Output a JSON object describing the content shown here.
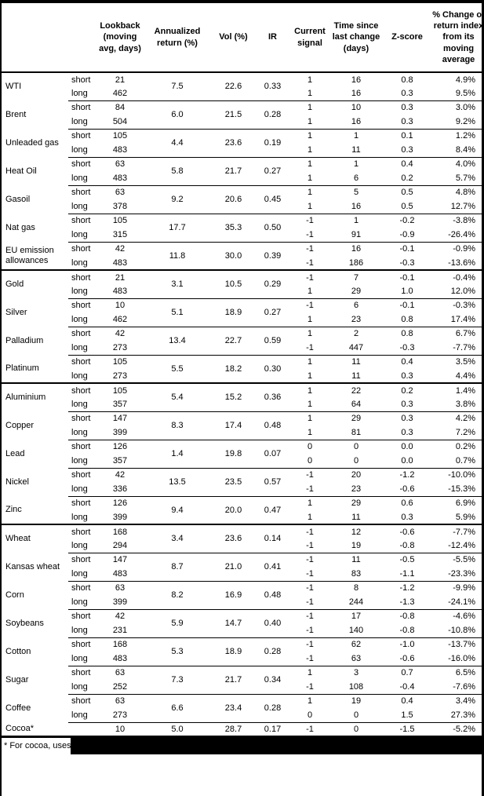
{
  "header": {
    "keys": [
      "commodity",
      "signal-type",
      "lookback",
      "annualized-return",
      "vol",
      "ir",
      "current-signal",
      "time-since-change",
      "z-score",
      "pct-change"
    ],
    "columns": [
      "",
      "",
      "Lookback (moving avg, days)",
      "Annualized return (%)",
      "Vol (%)",
      "IR",
      "Current signal",
      "Time since last change (days)",
      "Z-score",
      "% Change of return index from its moving average"
    ]
  },
  "colors": {
    "text": "#000000",
    "background": "#ffffff",
    "rule": "#000000",
    "redaction": "#000000"
  },
  "commodities": [
    {
      "name": "WTI",
      "annualized_return": "7.5",
      "vol": "22.6",
      "ir": "0.33",
      "group_end": false,
      "rows": [
        {
          "sub": "short",
          "lookback": "21",
          "signal": "1",
          "time": "16",
          "z": "0.8",
          "pct": "4.9%"
        },
        {
          "sub": "long",
          "lookback": "462",
          "signal": "1",
          "time": "16",
          "z": "0.3",
          "pct": "9.5%"
        }
      ]
    },
    {
      "name": "Brent",
      "annualized_return": "6.0",
      "vol": "21.5",
      "ir": "0.28",
      "group_end": false,
      "rows": [
        {
          "sub": "short",
          "lookback": "84",
          "signal": "1",
          "time": "10",
          "z": "0.3",
          "pct": "3.0%"
        },
        {
          "sub": "long",
          "lookback": "504",
          "signal": "1",
          "time": "16",
          "z": "0.3",
          "pct": "9.2%"
        }
      ]
    },
    {
      "name": "Unleaded gas",
      "annualized_return": "4.4",
      "vol": "23.6",
      "ir": "0.19",
      "group_end": false,
      "rows": [
        {
          "sub": "short",
          "lookback": "105",
          "signal": "1",
          "time": "1",
          "z": "0.1",
          "pct": "1.2%"
        },
        {
          "sub": "long",
          "lookback": "483",
          "signal": "1",
          "time": "11",
          "z": "0.3",
          "pct": "8.4%"
        }
      ]
    },
    {
      "name": "Heat Oil",
      "annualized_return": "5.8",
      "vol": "21.7",
      "ir": "0.27",
      "group_end": false,
      "rows": [
        {
          "sub": "short",
          "lookback": "63",
          "signal": "1",
          "time": "1",
          "z": "0.4",
          "pct": "4.0%"
        },
        {
          "sub": "long",
          "lookback": "483",
          "signal": "1",
          "time": "6",
          "z": "0.2",
          "pct": "5.7%"
        }
      ]
    },
    {
      "name": "Gasoil",
      "annualized_return": "9.2",
      "vol": "20.6",
      "ir": "0.45",
      "group_end": false,
      "rows": [
        {
          "sub": "short",
          "lookback": "63",
          "signal": "1",
          "time": "5",
          "z": "0.5",
          "pct": "4.8%"
        },
        {
          "sub": "long",
          "lookback": "378",
          "signal": "1",
          "time": "16",
          "z": "0.5",
          "pct": "12.7%"
        }
      ]
    },
    {
      "name": "Nat gas",
      "annualized_return": "17.7",
      "vol": "35.3",
      "ir": "0.50",
      "group_end": false,
      "rows": [
        {
          "sub": "short",
          "lookback": "105",
          "signal": "-1",
          "time": "1",
          "z": "-0.2",
          "pct": "-3.8%"
        },
        {
          "sub": "long",
          "lookback": "315",
          "signal": "-1",
          "time": "91",
          "z": "-0.9",
          "pct": "-26.4%"
        }
      ]
    },
    {
      "name": "EU emission allowances",
      "annualized_return": "11.8",
      "vol": "30.0",
      "ir": "0.39",
      "group_end": true,
      "rows": [
        {
          "sub": "short",
          "lookback": "42",
          "signal": "-1",
          "time": "16",
          "z": "-0.1",
          "pct": "-0.9%"
        },
        {
          "sub": "long",
          "lookback": "483",
          "signal": "-1",
          "time": "186",
          "z": "-0.3",
          "pct": "-13.6%"
        }
      ]
    },
    {
      "name": "Gold",
      "annualized_return": "3.1",
      "vol": "10.5",
      "ir": "0.29",
      "group_end": false,
      "rows": [
        {
          "sub": "short",
          "lookback": "21",
          "signal": "-1",
          "time": "7",
          "z": "-0.1",
          "pct": "-0.4%"
        },
        {
          "sub": "long",
          "lookback": "483",
          "signal": "1",
          "time": "29",
          "z": "1.0",
          "pct": "12.0%"
        }
      ]
    },
    {
      "name": "Silver",
      "annualized_return": "5.1",
      "vol": "18.9",
      "ir": "0.27",
      "group_end": false,
      "rows": [
        {
          "sub": "short",
          "lookback": "10",
          "signal": "-1",
          "time": "6",
          "z": "-0.1",
          "pct": "-0.3%"
        },
        {
          "sub": "long",
          "lookback": "462",
          "signal": "1",
          "time": "23",
          "z": "0.8",
          "pct": "17.4%"
        }
      ]
    },
    {
      "name": "Palladium",
      "annualized_return": "13.4",
      "vol": "22.7",
      "ir": "0.59",
      "group_end": false,
      "rows": [
        {
          "sub": "short",
          "lookback": "42",
          "signal": "1",
          "time": "2",
          "z": "0.8",
          "pct": "6.7%"
        },
        {
          "sub": "long",
          "lookback": "273",
          "signal": "-1",
          "time": "447",
          "z": "-0.3",
          "pct": "-7.7%"
        }
      ]
    },
    {
      "name": "Platinum",
      "annualized_return": "5.5",
      "vol": "18.2",
      "ir": "0.30",
      "group_end": true,
      "rows": [
        {
          "sub": "short",
          "lookback": "105",
          "signal": "1",
          "time": "11",
          "z": "0.4",
          "pct": "3.5%"
        },
        {
          "sub": "long",
          "lookback": "273",
          "signal": "1",
          "time": "11",
          "z": "0.3",
          "pct": "4.4%"
        }
      ]
    },
    {
      "name": "Aluminium",
      "annualized_return": "5.4",
      "vol": "15.2",
      "ir": "0.36",
      "group_end": false,
      "rows": [
        {
          "sub": "short",
          "lookback": "105",
          "signal": "1",
          "time": "22",
          "z": "0.2",
          "pct": "1.4%"
        },
        {
          "sub": "long",
          "lookback": "357",
          "signal": "1",
          "time": "64",
          "z": "0.3",
          "pct": "3.8%"
        }
      ]
    },
    {
      "name": "Copper",
      "annualized_return": "8.3",
      "vol": "17.4",
      "ir": "0.48",
      "group_end": false,
      "rows": [
        {
          "sub": "short",
          "lookback": "147",
          "signal": "1",
          "time": "29",
          "z": "0.3",
          "pct": "4.2%"
        },
        {
          "sub": "long",
          "lookback": "399",
          "signal": "1",
          "time": "81",
          "z": "0.3",
          "pct": "7.2%"
        }
      ]
    },
    {
      "name": "Lead",
      "annualized_return": "1.4",
      "vol": "19.8",
      "ir": "0.07",
      "group_end": false,
      "rows": [
        {
          "sub": "short",
          "lookback": "126",
          "signal": "0",
          "time": "0",
          "z": "0.0",
          "pct": "0.2%"
        },
        {
          "sub": "long",
          "lookback": "357",
          "signal": "0",
          "time": "0",
          "z": "0.0",
          "pct": "0.7%"
        }
      ]
    },
    {
      "name": "Nickel",
      "annualized_return": "13.5",
      "vol": "23.5",
      "ir": "0.57",
      "group_end": false,
      "rows": [
        {
          "sub": "short",
          "lookback": "42",
          "signal": "-1",
          "time": "20",
          "z": "-1.2",
          "pct": "-10.0%"
        },
        {
          "sub": "long",
          "lookback": "336",
          "signal": "-1",
          "time": "23",
          "z": "-0.6",
          "pct": "-15.3%"
        }
      ]
    },
    {
      "name": "Zinc",
      "annualized_return": "9.4",
      "vol": "20.0",
      "ir": "0.47",
      "group_end": true,
      "rows": [
        {
          "sub": "short",
          "lookback": "126",
          "signal": "1",
          "time": "29",
          "z": "0.6",
          "pct": "6.9%"
        },
        {
          "sub": "long",
          "lookback": "399",
          "signal": "1",
          "time": "11",
          "z": "0.3",
          "pct": "5.9%"
        }
      ]
    },
    {
      "name": "Wheat",
      "annualized_return": "3.4",
      "vol": "23.6",
      "ir": "0.14",
      "group_end": false,
      "rows": [
        {
          "sub": "short",
          "lookback": "168",
          "signal": "-1",
          "time": "12",
          "z": "-0.6",
          "pct": "-7.7%"
        },
        {
          "sub": "long",
          "lookback": "294",
          "signal": "-1",
          "time": "19",
          "z": "-0.8",
          "pct": "-12.4%"
        }
      ]
    },
    {
      "name": "Kansas wheat",
      "annualized_return": "8.7",
      "vol": "21.0",
      "ir": "0.41",
      "group_end": false,
      "rows": [
        {
          "sub": "short",
          "lookback": "147",
          "signal": "-1",
          "time": "11",
          "z": "-0.5",
          "pct": "-5.5%"
        },
        {
          "sub": "long",
          "lookback": "483",
          "signal": "-1",
          "time": "83",
          "z": "-1.1",
          "pct": "-23.3%"
        }
      ]
    },
    {
      "name": "Corn",
      "annualized_return": "8.2",
      "vol": "16.9",
      "ir": "0.48",
      "group_end": false,
      "rows": [
        {
          "sub": "short",
          "lookback": "63",
          "signal": "-1",
          "time": "8",
          "z": "-1.2",
          "pct": "-9.9%"
        },
        {
          "sub": "long",
          "lookback": "399",
          "signal": "-1",
          "time": "244",
          "z": "-1.3",
          "pct": "-24.1%"
        }
      ]
    },
    {
      "name": "Soybeans",
      "annualized_return": "5.9",
      "vol": "14.7",
      "ir": "0.40",
      "group_end": false,
      "rows": [
        {
          "sub": "short",
          "lookback": "42",
          "signal": "-1",
          "time": "17",
          "z": "-0.8",
          "pct": "-4.6%"
        },
        {
          "sub": "long",
          "lookback": "231",
          "signal": "-1",
          "time": "140",
          "z": "-0.8",
          "pct": "-10.8%"
        }
      ]
    },
    {
      "name": "Cotton",
      "annualized_return": "5.3",
      "vol": "18.9",
      "ir": "0.28",
      "group_end": false,
      "rows": [
        {
          "sub": "short",
          "lookback": "168",
          "signal": "-1",
          "time": "62",
          "z": "-1.0",
          "pct": "-13.7%"
        },
        {
          "sub": "long",
          "lookback": "483",
          "signal": "-1",
          "time": "63",
          "z": "-0.6",
          "pct": "-16.0%"
        }
      ]
    },
    {
      "name": "Sugar",
      "annualized_return": "7.3",
      "vol": "21.7",
      "ir": "0.34",
      "group_end": false,
      "rows": [
        {
          "sub": "short",
          "lookback": "63",
          "signal": "1",
          "time": "3",
          "z": "0.7",
          "pct": "6.5%"
        },
        {
          "sub": "long",
          "lookback": "252",
          "signal": "-1",
          "time": "108",
          "z": "-0.4",
          "pct": "-7.6%"
        }
      ]
    },
    {
      "name": "Coffee",
      "annualized_return": "6.6",
      "vol": "23.4",
      "ir": "0.28",
      "group_end": false,
      "rows": [
        {
          "sub": "short",
          "lookback": "63",
          "signal": "1",
          "time": "19",
          "z": "0.4",
          "pct": "3.4%"
        },
        {
          "sub": "long",
          "lookback": "273",
          "signal": "0",
          "time": "0",
          "z": "1.5",
          "pct": "27.3%"
        }
      ]
    },
    {
      "name": "Cocoa*",
      "annualized_return": "5.0",
      "vol": "28.7",
      "ir": "0.17",
      "group_end": false,
      "last": true,
      "rows": [
        {
          "sub": "",
          "lookback": "10",
          "signal": "-1",
          "time": "0",
          "z": "-1.5",
          "pct": "-5.2%"
        }
      ]
    }
  ],
  "footnote": {
    "text": "* For cocoa, uses o"
  }
}
